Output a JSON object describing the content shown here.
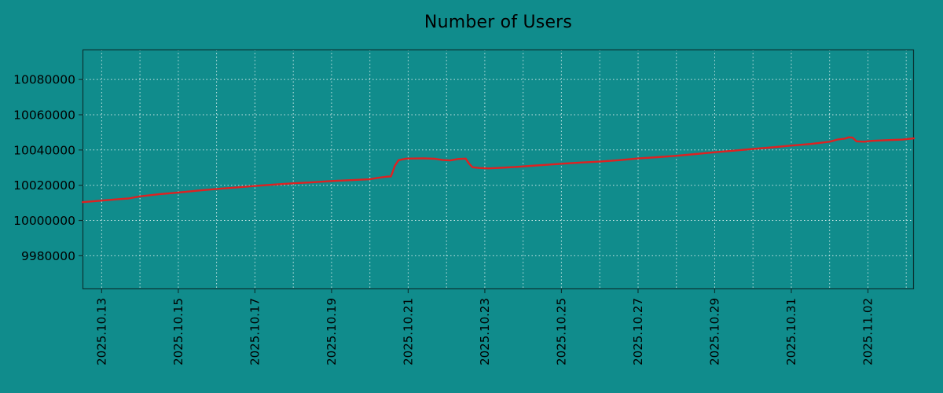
{
  "chart_data": {
    "type": "line",
    "title": "Number of Users",
    "xlabel": "",
    "ylabel": "",
    "grid": true,
    "legend": "none",
    "ylim": [
      9961000,
      10097000
    ],
    "xlim_days": [
      -0.5,
      21.2
    ],
    "y_ticks": [
      9980000,
      10000000,
      10020000,
      10040000,
      10060000,
      10080000
    ],
    "x_ticks": [
      {
        "day": 0,
        "label": "2025.10.13"
      },
      {
        "day": 2,
        "label": "2025.10.15"
      },
      {
        "day": 4,
        "label": "2025.10.17"
      },
      {
        "day": 6,
        "label": "2025.10.19"
      },
      {
        "day": 8,
        "label": "2025.10.21"
      },
      {
        "day": 10,
        "label": "2025.10.23"
      },
      {
        "day": 12,
        "label": "2025.10.25"
      },
      {
        "day": 14,
        "label": "2025.10.27"
      },
      {
        "day": 16,
        "label": "2025.10.29"
      },
      {
        "day": 18,
        "label": "2025.10.31"
      },
      {
        "day": 20,
        "label": "2025.11.02"
      }
    ],
    "x_grid_step_days": 1,
    "colors": {
      "background": "#108c8c",
      "grid": "#dceeee",
      "axis": "#0a3333",
      "text": "#000000",
      "line": "#de2121"
    },
    "series": [
      {
        "name": "Number of Users",
        "color": "#de2121",
        "points": [
          [
            -0.5,
            10010400
          ],
          [
            0.0,
            10011300
          ],
          [
            0.4,
            10012000
          ],
          [
            0.7,
            10012500
          ],
          [
            1.0,
            10013700
          ],
          [
            1.5,
            10014900
          ],
          [
            2.0,
            10015900
          ],
          [
            2.5,
            10016900
          ],
          [
            3.0,
            10017900
          ],
          [
            3.5,
            10018700
          ],
          [
            4.0,
            10019600
          ],
          [
            4.5,
            10020400
          ],
          [
            5.0,
            10021100
          ],
          [
            5.5,
            10021700
          ],
          [
            6.0,
            10022400
          ],
          [
            6.5,
            10022900
          ],
          [
            7.0,
            10023400
          ],
          [
            7.2,
            10024200
          ],
          [
            7.45,
            10024900
          ],
          [
            7.55,
            10025000
          ],
          [
            7.65,
            10031000
          ],
          [
            7.75,
            10034200
          ],
          [
            7.95,
            10035100
          ],
          [
            8.4,
            10035300
          ],
          [
            8.7,
            10035000
          ],
          [
            8.9,
            10034300
          ],
          [
            9.1,
            10034100
          ],
          [
            9.3,
            10034900
          ],
          [
            9.5,
            10035100
          ],
          [
            9.58,
            10032500
          ],
          [
            9.68,
            10030200
          ],
          [
            9.85,
            10029800
          ],
          [
            10.1,
            10029600
          ],
          [
            10.4,
            10029900
          ],
          [
            10.8,
            10030400
          ],
          [
            11.2,
            10031000
          ],
          [
            11.6,
            10031600
          ],
          [
            12.0,
            10032200
          ],
          [
            12.5,
            10032900
          ],
          [
            13.0,
            10033400
          ],
          [
            13.5,
            10034200
          ],
          [
            14.0,
            10035200
          ],
          [
            14.5,
            10035900
          ],
          [
            15.0,
            10036700
          ],
          [
            15.5,
            10037700
          ],
          [
            16.0,
            10038700
          ],
          [
            16.5,
            10039600
          ],
          [
            17.0,
            10040600
          ],
          [
            17.5,
            10041500
          ],
          [
            18.0,
            10042500
          ],
          [
            18.5,
            10043400
          ],
          [
            19.0,
            10044700
          ],
          [
            19.2,
            10045900
          ],
          [
            19.4,
            10046500
          ],
          [
            19.5,
            10047200
          ],
          [
            19.6,
            10047000
          ],
          [
            19.7,
            10044900
          ],
          [
            19.9,
            10044700
          ],
          [
            20.1,
            10045200
          ],
          [
            20.5,
            10045600
          ],
          [
            20.9,
            10045900
          ],
          [
            21.2,
            10046600
          ]
        ]
      }
    ]
  }
}
